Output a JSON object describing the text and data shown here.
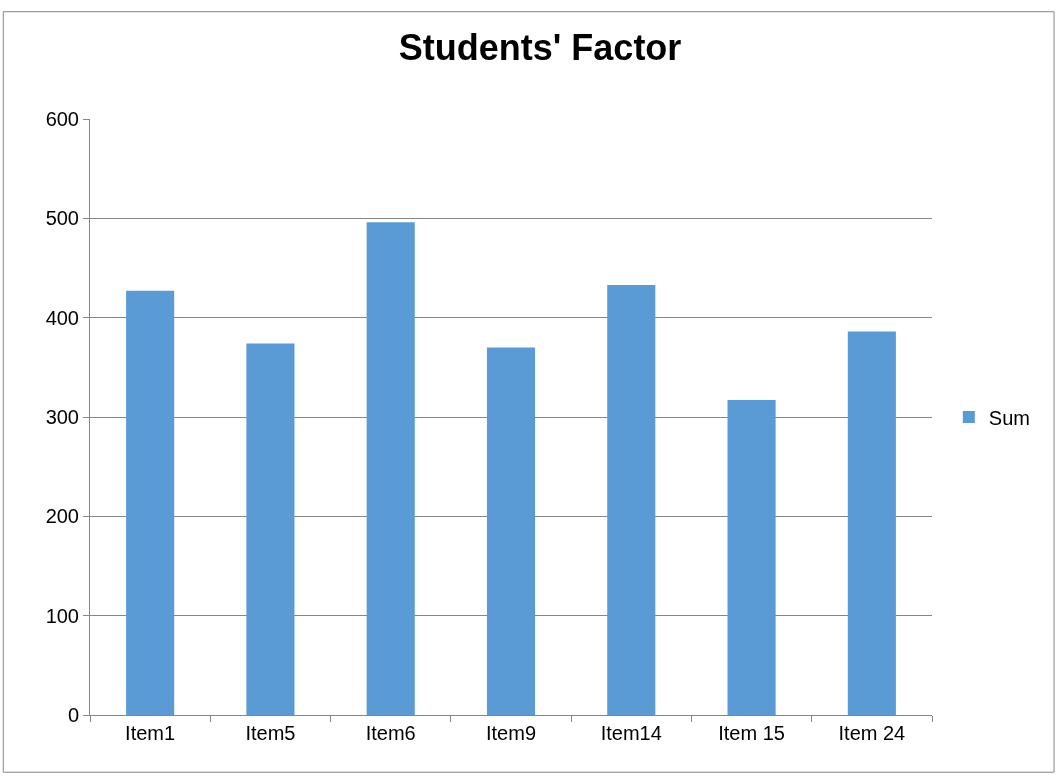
{
  "chart_data": {
    "type": "bar",
    "title": "Students' Factor",
    "categories": [
      "Item1",
      "Item5",
      "Item6",
      "Item9",
      "Item14",
      "Item 15",
      "Item 24"
    ],
    "series": [
      {
        "name": "Sum",
        "color": "#5b9bd5",
        "values": [
          427,
          374,
          496,
          370,
          433,
          317,
          386
        ]
      }
    ],
    "ylim": [
      0,
      600
    ],
    "yticks": [
      0,
      100,
      200,
      300,
      400,
      500,
      600
    ],
    "grid": "y",
    "legend": "right"
  }
}
